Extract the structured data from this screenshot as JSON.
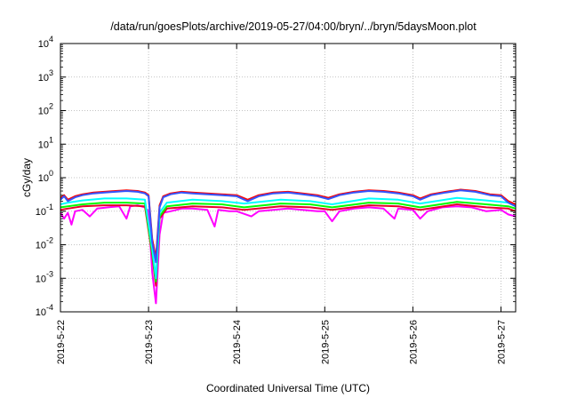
{
  "chart_data": {
    "type": "line",
    "title": "/data/run/goesPlots/archive/2019-05-27/04:00/bryn/../bryn/5daysMoon.plot",
    "xlabel": "Coordinated Universal Time (UTC)",
    "ylabel": "cGy/day",
    "y_scale": "log",
    "ylim": [
      0.0001,
      10000
    ],
    "y_ticks": [
      {
        "value": 0.0001,
        "mantissa": "10",
        "exp": "-4"
      },
      {
        "value": 0.001,
        "mantissa": "10",
        "exp": "-3"
      },
      {
        "value": 0.01,
        "mantissa": "10",
        "exp": "-2"
      },
      {
        "value": 0.1,
        "mantissa": "10",
        "exp": "-1"
      },
      {
        "value": 1,
        "mantissa": "10",
        "exp": "0"
      },
      {
        "value": 10,
        "mantissa": "10",
        "exp": "1"
      },
      {
        "value": 100,
        "mantissa": "10",
        "exp": "2"
      },
      {
        "value": 1000,
        "mantissa": "10",
        "exp": "3"
      },
      {
        "value": 10000,
        "mantissa": "10",
        "exp": "4"
      }
    ],
    "xlim": [
      "2019-05-22 00:00",
      "2019-05-27 04:00"
    ],
    "x_ticks": [
      "2019-5-22",
      "2019-5-23",
      "2019-5-24",
      "2019-5-25",
      "2019-5-26",
      "2019-5-27"
    ],
    "grid": true,
    "legend": "none",
    "series": [
      {
        "color": "#ff00ff",
        "points": [
          [
            "2019-05-22 00:00",
            0.09
          ],
          [
            "2019-05-22 01:00",
            0.06
          ],
          [
            "2019-05-22 02:00",
            0.09
          ],
          [
            "2019-05-22 03:00",
            0.04
          ],
          [
            "2019-05-22 04:00",
            0.1
          ],
          [
            "2019-05-22 06:00",
            0.11
          ],
          [
            "2019-05-22 08:00",
            0.07
          ],
          [
            "2019-05-22 10:00",
            0.12
          ],
          [
            "2019-05-22 13:00",
            0.13
          ],
          [
            "2019-05-22 16:00",
            0.14
          ],
          [
            "2019-05-22 18:00",
            0.06
          ],
          [
            "2019-05-22 19:00",
            0.14
          ],
          [
            "2019-05-22 21:00",
            0.15
          ],
          [
            "2019-05-22 23:00",
            0.13
          ],
          [
            "2019-05-23 00:00",
            0.1
          ],
          [
            "2019-05-23 01:00",
            0.0015
          ],
          [
            "2019-05-23 02:00",
            0.00018
          ],
          [
            "2019-05-23 03:00",
            0.02
          ],
          [
            "2019-05-23 04:00",
            0.09
          ],
          [
            "2019-05-23 06:00",
            0.1
          ],
          [
            "2019-05-23 09:00",
            0.12
          ],
          [
            "2019-05-23 12:00",
            0.12
          ],
          [
            "2019-05-23 16:00",
            0.11
          ],
          [
            "2019-05-23 18:00",
            0.035
          ],
          [
            "2019-05-23 19:00",
            0.11
          ],
          [
            "2019-05-23 22:00",
            0.1
          ],
          [
            "2019-05-24 00:00",
            0.1
          ],
          [
            "2019-05-24 04:00",
            0.07
          ],
          [
            "2019-05-24 06:00",
            0.1
          ],
          [
            "2019-05-24 10:00",
            0.11
          ],
          [
            "2019-05-24 14:00",
            0.12
          ],
          [
            "2019-05-24 18:00",
            0.11
          ],
          [
            "2019-05-24 22:00",
            0.1
          ],
          [
            "2019-05-25 00:00",
            0.1
          ],
          [
            "2019-05-25 02:00",
            0.05
          ],
          [
            "2019-05-25 04:00",
            0.1
          ],
          [
            "2019-05-25 08:00",
            0.12
          ],
          [
            "2019-05-25 12:00",
            0.13
          ],
          [
            "2019-05-25 16:00",
            0.12
          ],
          [
            "2019-05-25 19:00",
            0.06
          ],
          [
            "2019-05-25 20:00",
            0.12
          ],
          [
            "2019-05-26 00:00",
            0.11
          ],
          [
            "2019-05-26 02:00",
            0.06
          ],
          [
            "2019-05-26 04:00",
            0.1
          ],
          [
            "2019-05-26 08:00",
            0.13
          ],
          [
            "2019-05-26 12:00",
            0.14
          ],
          [
            "2019-05-26 16:00",
            0.13
          ],
          [
            "2019-05-26 20:00",
            0.1
          ],
          [
            "2019-05-27 00:00",
            0.11
          ],
          [
            "2019-05-27 02:00",
            0.08
          ],
          [
            "2019-05-27 04:00",
            0.07
          ]
        ]
      },
      {
        "color": "#e8002a",
        "points": [
          [
            "2019-05-22 00:00",
            0.11
          ],
          [
            "2019-05-22 02:00",
            0.12
          ],
          [
            "2019-05-22 06:00",
            0.14
          ],
          [
            "2019-05-22 12:00",
            0.15
          ],
          [
            "2019-05-22 18:00",
            0.15
          ],
          [
            "2019-05-22 23:00",
            0.14
          ],
          [
            "2019-05-23 01:00",
            0.005
          ],
          [
            "2019-05-23 02:00",
            0.0006
          ],
          [
            "2019-05-23 03:00",
            0.06
          ],
          [
            "2019-05-23 05:00",
            0.12
          ],
          [
            "2019-05-23 12:00",
            0.14
          ],
          [
            "2019-05-23 20:00",
            0.13
          ],
          [
            "2019-05-24 02:00",
            0.11
          ],
          [
            "2019-05-24 12:00",
            0.14
          ],
          [
            "2019-05-24 20:00",
            0.13
          ],
          [
            "2019-05-25 02:00",
            0.11
          ],
          [
            "2019-05-25 12:00",
            0.15
          ],
          [
            "2019-05-25 20:00",
            0.14
          ],
          [
            "2019-05-26 02:00",
            0.11
          ],
          [
            "2019-05-26 12:00",
            0.16
          ],
          [
            "2019-05-26 20:00",
            0.13
          ],
          [
            "2019-05-27 02:00",
            0.12
          ],
          [
            "2019-05-27 04:00",
            0.1
          ]
        ]
      },
      {
        "color": "#00ff00",
        "points": [
          [
            "2019-05-22 00:00",
            0.13
          ],
          [
            "2019-05-22 02:00",
            0.14
          ],
          [
            "2019-05-22 06:00",
            0.16
          ],
          [
            "2019-05-22 12:00",
            0.18
          ],
          [
            "2019-05-22 18:00",
            0.18
          ],
          [
            "2019-05-22 23:00",
            0.17
          ],
          [
            "2019-05-23 01:00",
            0.006
          ],
          [
            "2019-05-23 02:00",
            0.0008
          ],
          [
            "2019-05-23 03:00",
            0.07
          ],
          [
            "2019-05-23 05:00",
            0.14
          ],
          [
            "2019-05-23 12:00",
            0.17
          ],
          [
            "2019-05-23 20:00",
            0.16
          ],
          [
            "2019-05-24 02:00",
            0.13
          ],
          [
            "2019-05-24 12:00",
            0.17
          ],
          [
            "2019-05-24 20:00",
            0.16
          ],
          [
            "2019-05-25 02:00",
            0.13
          ],
          [
            "2019-05-25 12:00",
            0.18
          ],
          [
            "2019-05-25 20:00",
            0.17
          ],
          [
            "2019-05-26 02:00",
            0.13
          ],
          [
            "2019-05-26 12:00",
            0.19
          ],
          [
            "2019-05-26 20:00",
            0.16
          ],
          [
            "2019-05-27 02:00",
            0.14
          ],
          [
            "2019-05-27 04:00",
            0.12
          ]
        ]
      },
      {
        "color": "#00ffff",
        "points": [
          [
            "2019-05-22 00:00",
            0.16
          ],
          [
            "2019-05-22 02:00",
            0.18
          ],
          [
            "2019-05-22 06:00",
            0.21
          ],
          [
            "2019-05-22 12:00",
            0.24
          ],
          [
            "2019-05-22 18:00",
            0.24
          ],
          [
            "2019-05-22 23:00",
            0.22
          ],
          [
            "2019-05-23 01:00",
            0.008
          ],
          [
            "2019-05-23 02:00",
            0.001
          ],
          [
            "2019-05-23 03:00",
            0.09
          ],
          [
            "2019-05-23 05:00",
            0.18
          ],
          [
            "2019-05-23 12:00",
            0.22
          ],
          [
            "2019-05-23 20:00",
            0.2
          ],
          [
            "2019-05-24 02:00",
            0.17
          ],
          [
            "2019-05-24 12:00",
            0.22
          ],
          [
            "2019-05-24 20:00",
            0.2
          ],
          [
            "2019-05-25 02:00",
            0.16
          ],
          [
            "2019-05-25 12:00",
            0.24
          ],
          [
            "2019-05-25 20:00",
            0.22
          ],
          [
            "2019-05-26 02:00",
            0.17
          ],
          [
            "2019-05-26 12:00",
            0.25
          ],
          [
            "2019-05-26 20:00",
            0.21
          ],
          [
            "2019-05-27 02:00",
            0.18
          ],
          [
            "2019-05-27 04:00",
            0.14
          ]
        ]
      },
      {
        "color": "#ff0000",
        "points": [
          [
            "2019-05-22 00:00",
            0.25
          ],
          [
            "2019-05-22 01:00",
            0.3
          ],
          [
            "2019-05-22 02:00",
            0.22
          ],
          [
            "2019-05-22 04:00",
            0.28
          ],
          [
            "2019-05-22 06:00",
            0.32
          ],
          [
            "2019-05-22 09:00",
            0.36
          ],
          [
            "2019-05-22 12:00",
            0.38
          ],
          [
            "2019-05-22 15:00",
            0.4
          ],
          [
            "2019-05-22 18:00",
            0.42
          ],
          [
            "2019-05-22 21:00",
            0.4
          ],
          [
            "2019-05-22 23:00",
            0.36
          ],
          [
            "2019-05-23 00:00",
            0.3
          ],
          [
            "2019-05-23 01:00",
            0.015
          ],
          [
            "2019-05-23 02:00",
            0.004
          ],
          [
            "2019-05-23 03:00",
            0.15
          ],
          [
            "2019-05-23 04:00",
            0.28
          ],
          [
            "2019-05-23 06:00",
            0.34
          ],
          [
            "2019-05-23 09:00",
            0.38
          ],
          [
            "2019-05-23 12:00",
            0.36
          ],
          [
            "2019-05-23 16:00",
            0.34
          ],
          [
            "2019-05-23 20:00",
            0.32
          ],
          [
            "2019-05-24 00:00",
            0.3
          ],
          [
            "2019-05-24 03:00",
            0.22
          ],
          [
            "2019-05-24 06:00",
            0.3
          ],
          [
            "2019-05-24 10:00",
            0.36
          ],
          [
            "2019-05-24 14:00",
            0.38
          ],
          [
            "2019-05-24 18:00",
            0.34
          ],
          [
            "2019-05-24 22:00",
            0.3
          ],
          [
            "2019-05-25 01:00",
            0.25
          ],
          [
            "2019-05-25 04:00",
            0.32
          ],
          [
            "2019-05-25 08:00",
            0.38
          ],
          [
            "2019-05-25 12:00",
            0.42
          ],
          [
            "2019-05-25 16:00",
            0.4
          ],
          [
            "2019-05-25 20:00",
            0.36
          ],
          [
            "2019-05-26 00:00",
            0.3
          ],
          [
            "2019-05-26 02:00",
            0.24
          ],
          [
            "2019-05-26 05:00",
            0.32
          ],
          [
            "2019-05-26 09:00",
            0.38
          ],
          [
            "2019-05-26 13:00",
            0.44
          ],
          [
            "2019-05-26 17:00",
            0.4
          ],
          [
            "2019-05-26 21:00",
            0.32
          ],
          [
            "2019-05-27 00:00",
            0.3
          ],
          [
            "2019-05-27 02:00",
            0.2
          ],
          [
            "2019-05-27 04:00",
            0.16
          ]
        ]
      },
      {
        "color": "#3355ff",
        "points": [
          [
            "2019-05-22 00:00",
            0.22
          ],
          [
            "2019-05-22 01:00",
            0.28
          ],
          [
            "2019-05-22 02:00",
            0.2
          ],
          [
            "2019-05-22 04:00",
            0.26
          ],
          [
            "2019-05-22 06:00",
            0.3
          ],
          [
            "2019-05-22 09:00",
            0.34
          ],
          [
            "2019-05-22 12:00",
            0.36
          ],
          [
            "2019-05-22 15:00",
            0.38
          ],
          [
            "2019-05-22 18:00",
            0.4
          ],
          [
            "2019-05-22 21:00",
            0.38
          ],
          [
            "2019-05-22 23:00",
            0.34
          ],
          [
            "2019-05-23 00:00",
            0.28
          ],
          [
            "2019-05-23 01:00",
            0.012
          ],
          [
            "2019-05-23 02:00",
            0.003
          ],
          [
            "2019-05-23 03:00",
            0.13
          ],
          [
            "2019-05-23 04:00",
            0.26
          ],
          [
            "2019-05-23 06:00",
            0.32
          ],
          [
            "2019-05-23 09:00",
            0.36
          ],
          [
            "2019-05-23 12:00",
            0.34
          ],
          [
            "2019-05-23 16:00",
            0.32
          ],
          [
            "2019-05-23 20:00",
            0.3
          ],
          [
            "2019-05-24 00:00",
            0.28
          ],
          [
            "2019-05-24 03:00",
            0.2
          ],
          [
            "2019-05-24 06:00",
            0.28
          ],
          [
            "2019-05-24 10:00",
            0.34
          ],
          [
            "2019-05-24 14:00",
            0.36
          ],
          [
            "2019-05-24 18:00",
            0.32
          ],
          [
            "2019-05-24 22:00",
            0.28
          ],
          [
            "2019-05-25 01:00",
            0.23
          ],
          [
            "2019-05-25 04:00",
            0.3
          ],
          [
            "2019-05-25 08:00",
            0.36
          ],
          [
            "2019-05-25 12:00",
            0.4
          ],
          [
            "2019-05-25 16:00",
            0.38
          ],
          [
            "2019-05-25 20:00",
            0.34
          ],
          [
            "2019-05-26 00:00",
            0.28
          ],
          [
            "2019-05-26 02:00",
            0.22
          ],
          [
            "2019-05-26 05:00",
            0.3
          ],
          [
            "2019-05-26 09:00",
            0.36
          ],
          [
            "2019-05-26 13:00",
            0.42
          ],
          [
            "2019-05-26 17:00",
            0.38
          ],
          [
            "2019-05-26 21:00",
            0.3
          ],
          [
            "2019-05-27 00:00",
            0.28
          ],
          [
            "2019-05-27 02:00",
            0.18
          ],
          [
            "2019-05-27 04:00",
            0.14
          ]
        ]
      }
    ]
  }
}
